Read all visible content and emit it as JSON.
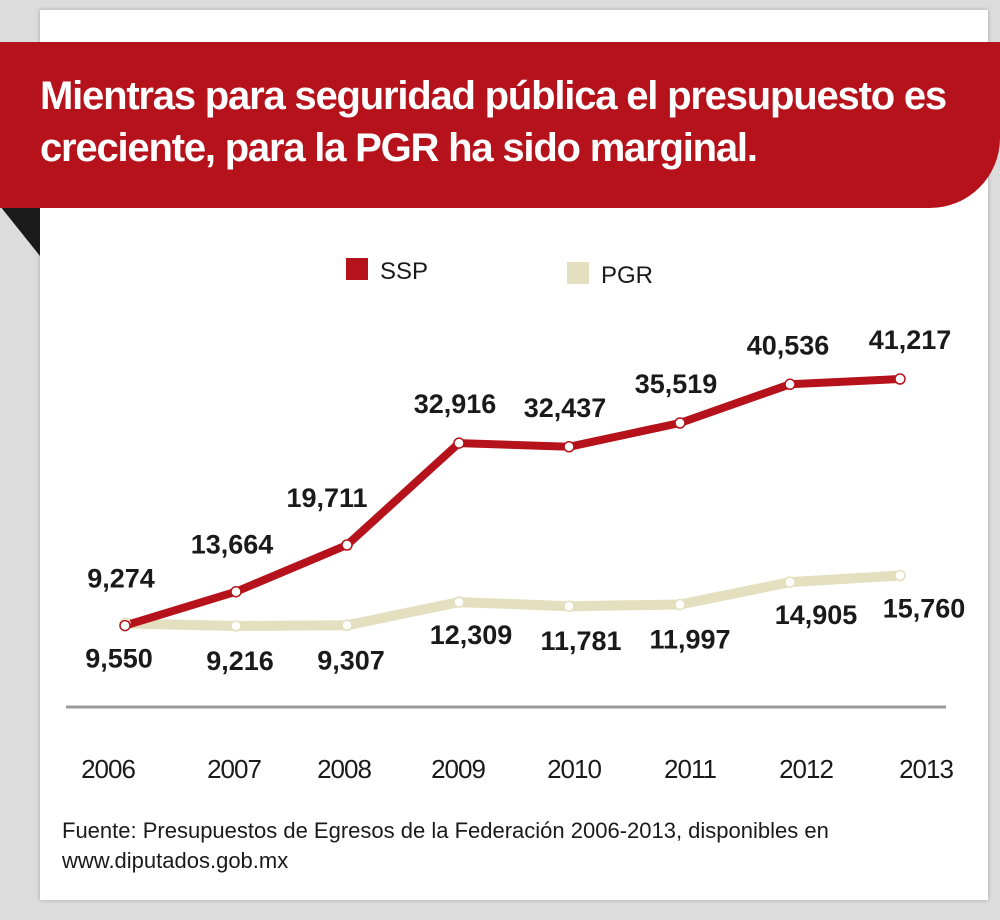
{
  "header": {
    "title": "Mientras para seguridad pública el presupuesto es creciente, para la PGR ha sido marginal."
  },
  "footer": {
    "source_line1": "Fuente: Presupuestos de Egresos de la Federación 2006-2013, disponibles en",
    "source_line2": "www.diputados.gob.mx"
  },
  "colors": {
    "ssp": "#b5121b",
    "pgr": "#e3dfbf",
    "banner": "#b5121b"
  },
  "chart_data": {
    "type": "line",
    "x": [
      "2006",
      "2007",
      "2008",
      "2009",
      "2010",
      "2011",
      "2012",
      "2013"
    ],
    "series": [
      {
        "name": "SSP",
        "values": [
          9274,
          13664,
          19711,
          32916,
          32437,
          35519,
          40536,
          41217
        ],
        "labels": [
          "9,274",
          "13,664",
          "19,711",
          "32,916",
          "32,437",
          "35,519",
          "40,536",
          "41,217"
        ],
        "color": "#b5121b"
      },
      {
        "name": "PGR",
        "values": [
          9550,
          9216,
          9307,
          12309,
          11781,
          11997,
          14905,
          15760
        ],
        "labels": [
          "9,550",
          "9,216",
          "9,307",
          "12,309",
          "11,781",
          "11,997",
          "14,905",
          "15,760"
        ],
        "color": "#e3dfbf"
      }
    ],
    "legend_position": "top-center",
    "grid": false,
    "ylim": [
      9000,
      42000
    ]
  }
}
